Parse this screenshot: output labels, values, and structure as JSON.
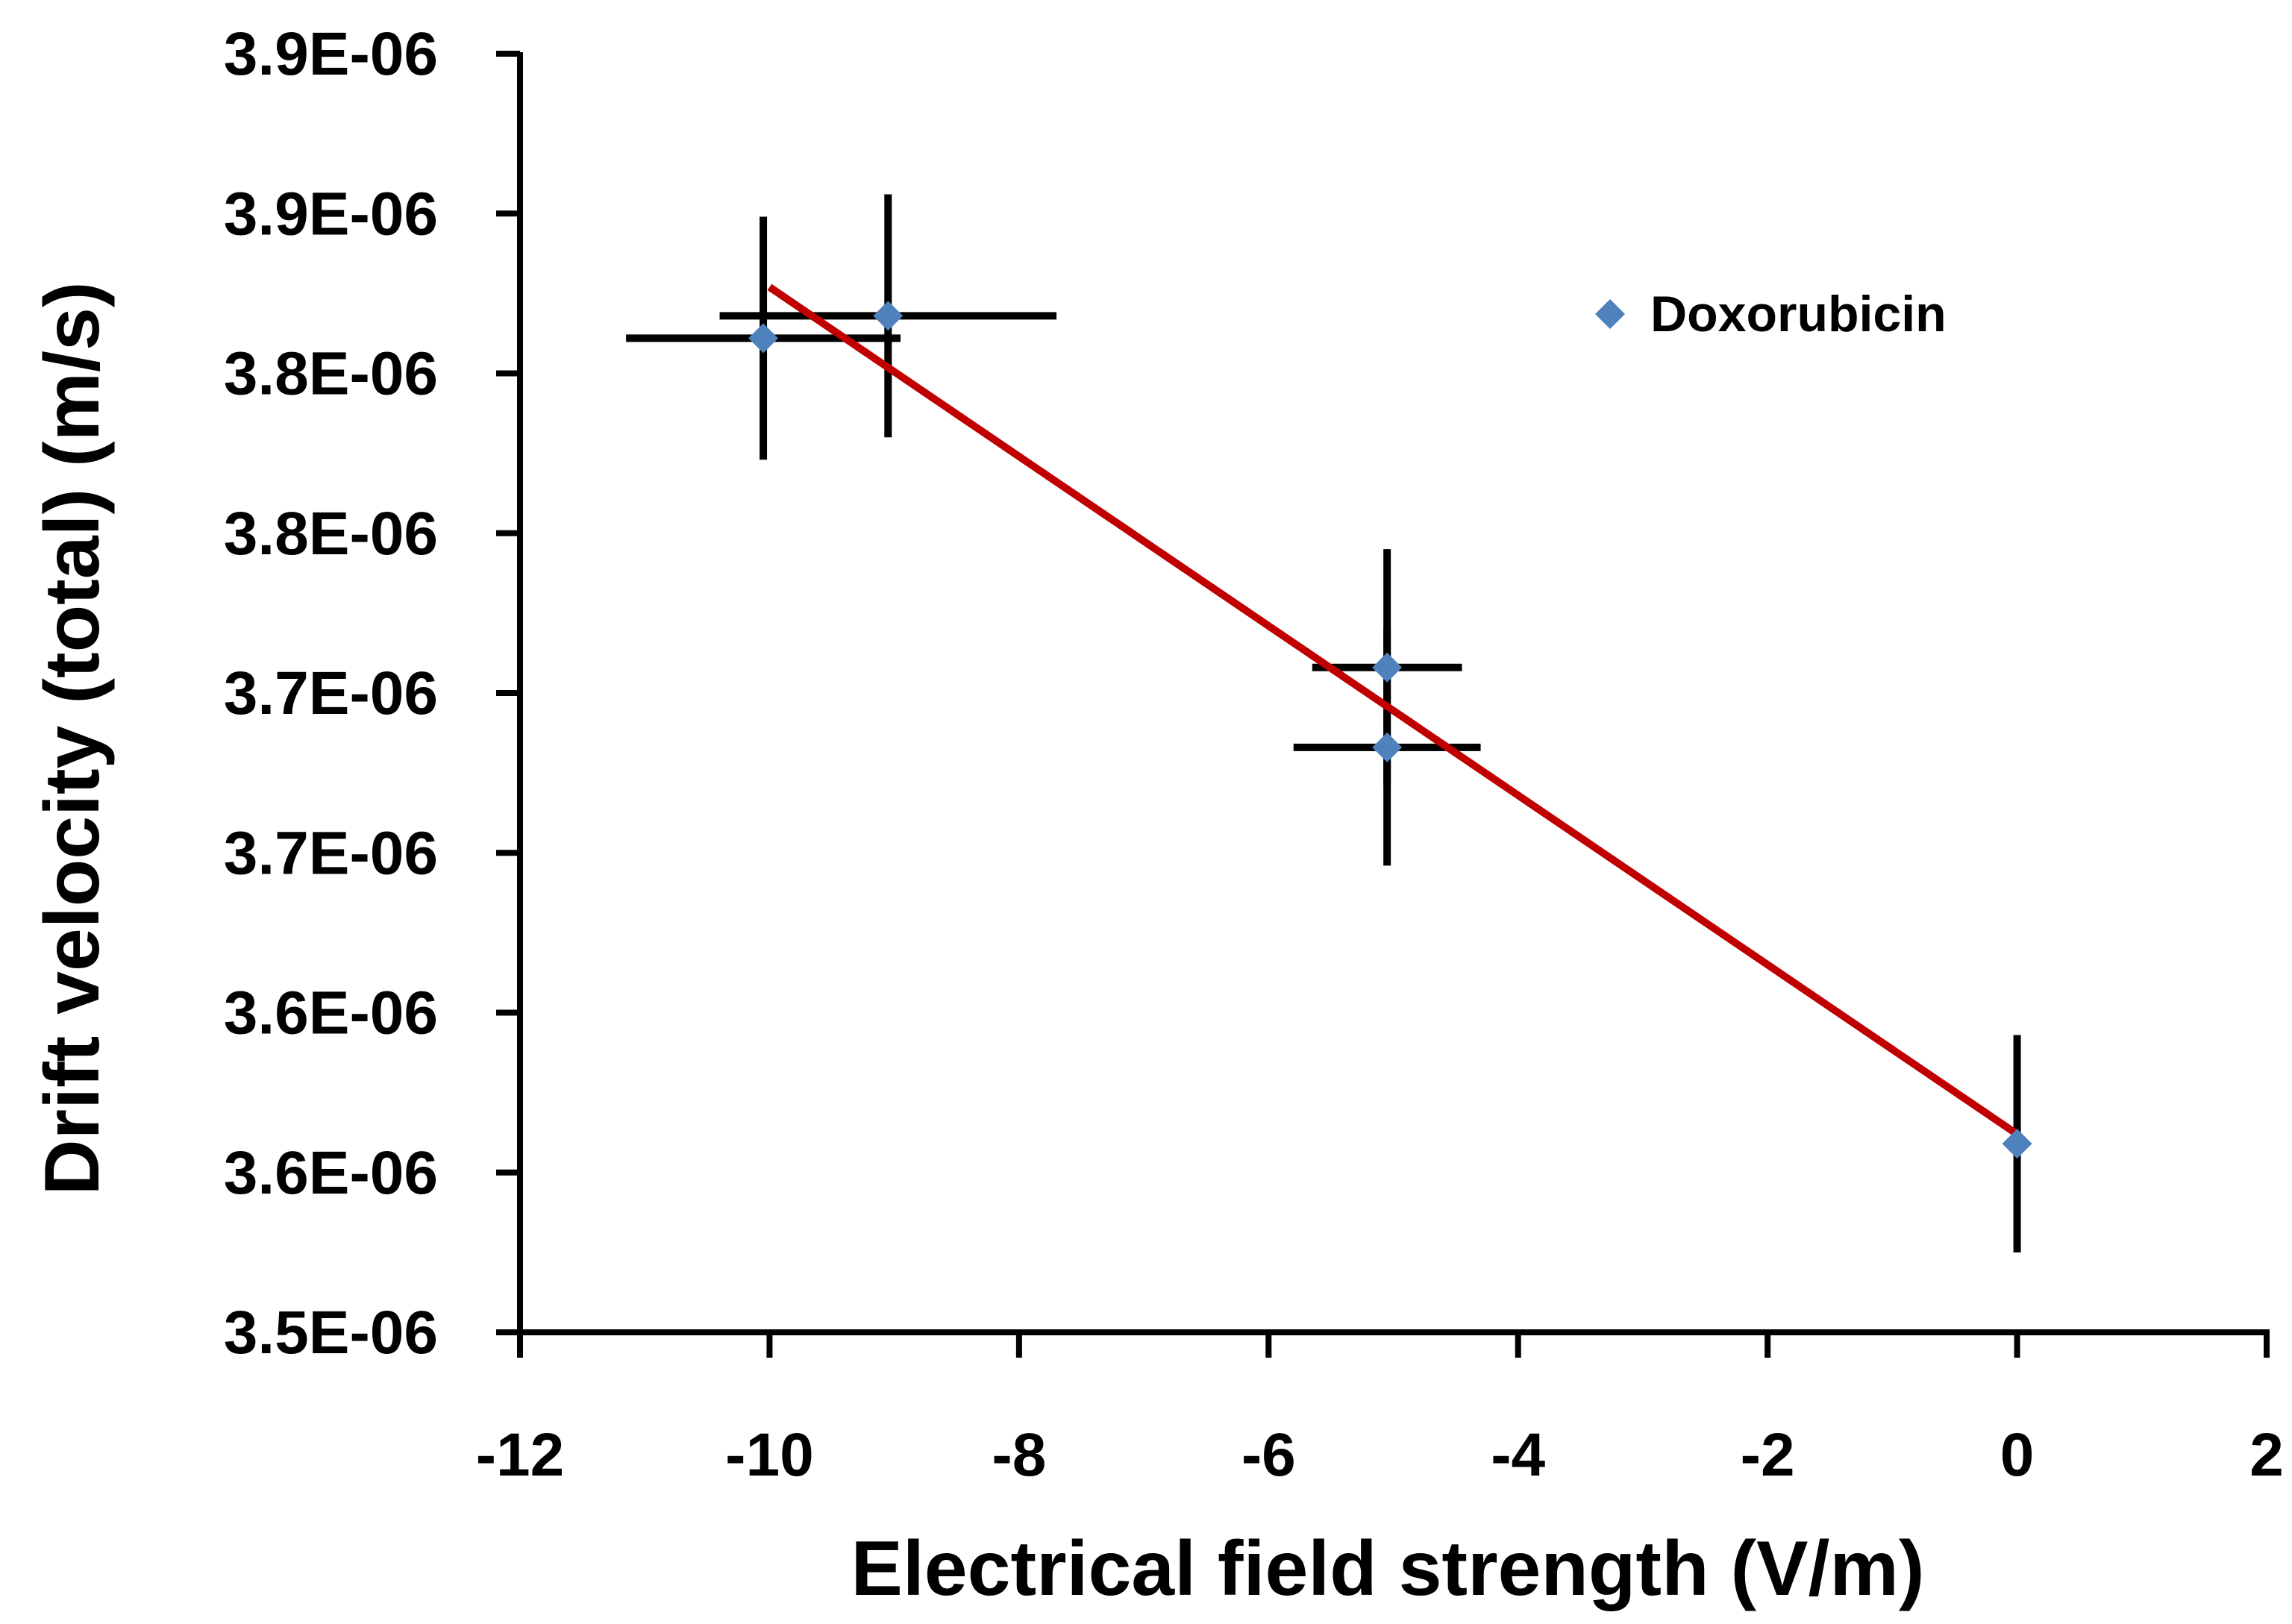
{
  "chart_data": {
    "type": "scatter",
    "xlabel": "Electrical field strength (V/m)",
    "ylabel": "Drift velocity (total) (m/s)",
    "xlim": [
      -12,
      2
    ],
    "ylim": [
      3.55e-06,
      3.95e-06
    ],
    "x_ticks": [
      -12,
      -10,
      -8,
      -6,
      -4,
      -2,
      0,
      2
    ],
    "x_tick_labels": [
      "-12",
      "-10",
      "-8",
      "-6",
      "-4",
      "-2",
      "0",
      "2"
    ],
    "y_ticks": [
      3.55e-06,
      3.6e-06,
      3.65e-06,
      3.7e-06,
      3.75e-06,
      3.8e-06,
      3.85e-06,
      3.9e-06,
      3.95e-06
    ],
    "y_tick_labels": [
      "3.5E-06",
      "3.6E-06",
      "3.6E-06",
      "3.7E-06",
      "3.7E-06",
      "3.8E-06",
      "3.8E-06",
      "3.9E-06",
      "3.9E-06"
    ],
    "grid": false,
    "legend_position": "top-right",
    "series": [
      {
        "name": "Doxorubicin",
        "marker": "diamond",
        "color": "#4F81BD",
        "points": [
          {
            "x": -10.05,
            "y": 3.861e-06,
            "xerr": 1.1,
            "yerr": 3.8e-08
          },
          {
            "x": -9.05,
            "y": 3.868e-06,
            "xerr": 1.35,
            "yerr": 3.8e-08
          },
          {
            "x": -5.05,
            "y": 3.758e-06,
            "xerr": 0.6,
            "yerr": 3.7e-08
          },
          {
            "x": -5.05,
            "y": 3.733e-06,
            "xerr": 0.75,
            "yerr": 3.7e-08
          },
          {
            "x": 0.0,
            "y": 3.609e-06,
            "xerr": 0.0,
            "yerr": 3.4e-08
          }
        ]
      }
    ],
    "trendline": {
      "color": "#C00000",
      "from": {
        "x": -10.0,
        "y": 3.877e-06
      },
      "to": {
        "x": 0.0,
        "y": 3.612e-06
      }
    }
  }
}
